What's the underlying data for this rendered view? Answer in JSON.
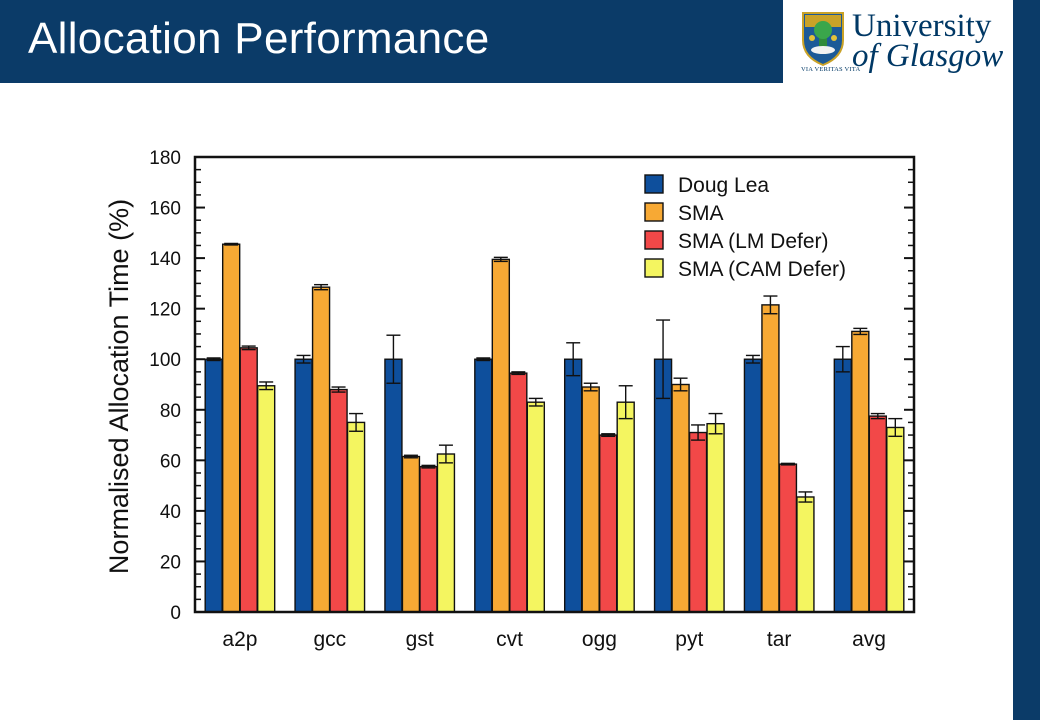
{
  "header": {
    "title": "Allocation Performance"
  },
  "logo": {
    "line1": "University",
    "line2": "of Glasgow",
    "motto": "VIA VERITAS VITA"
  },
  "colors": {
    "brand": "#0b3b68"
  },
  "chart_data": {
    "type": "bar",
    "title": "",
    "xlabel": "",
    "ylabel": "Normalised Allocation Time (%)",
    "ylim": [
      0,
      180
    ],
    "yticks": [
      0,
      20,
      40,
      60,
      80,
      100,
      120,
      140,
      160,
      180
    ],
    "grid": false,
    "legend_position": "top-right",
    "categories": [
      "a2p",
      "gcc",
      "gst",
      "cvt",
      "ogg",
      "pyt",
      "tar",
      "avg"
    ],
    "series": [
      {
        "name": "Doug Lea",
        "color": "#0e4f9c",
        "values": [
          100,
          100,
          100,
          100,
          100,
          100,
          100,
          100
        ],
        "error": [
          0.5,
          1.5,
          9.5,
          0.5,
          6.5,
          15.5,
          1.5,
          5
        ]
      },
      {
        "name": "SMA",
        "color": "#f7a934",
        "values": [
          145.5,
          128.5,
          61.5,
          139.5,
          89,
          90,
          121.5,
          111
        ],
        "error": [
          0.3,
          1,
          0.5,
          0.8,
          1.5,
          2.5,
          3.5,
          1.2
        ]
      },
      {
        "name": "SMA (LM Defer)",
        "color": "#f24848",
        "values": [
          104.5,
          88,
          57.5,
          94.5,
          70,
          71,
          58.5,
          77.5
        ],
        "error": [
          0.7,
          1,
          0.5,
          0.5,
          0.5,
          3,
          0.3,
          1
        ]
      },
      {
        "name": "SMA (CAM Defer)",
        "color": "#f4f560",
        "values": [
          89.5,
          75,
          62.5,
          83,
          83,
          74.5,
          45.5,
          73
        ],
        "error": [
          1.5,
          3.5,
          3.5,
          1.5,
          6.5,
          4,
          2,
          3.5
        ]
      }
    ]
  }
}
